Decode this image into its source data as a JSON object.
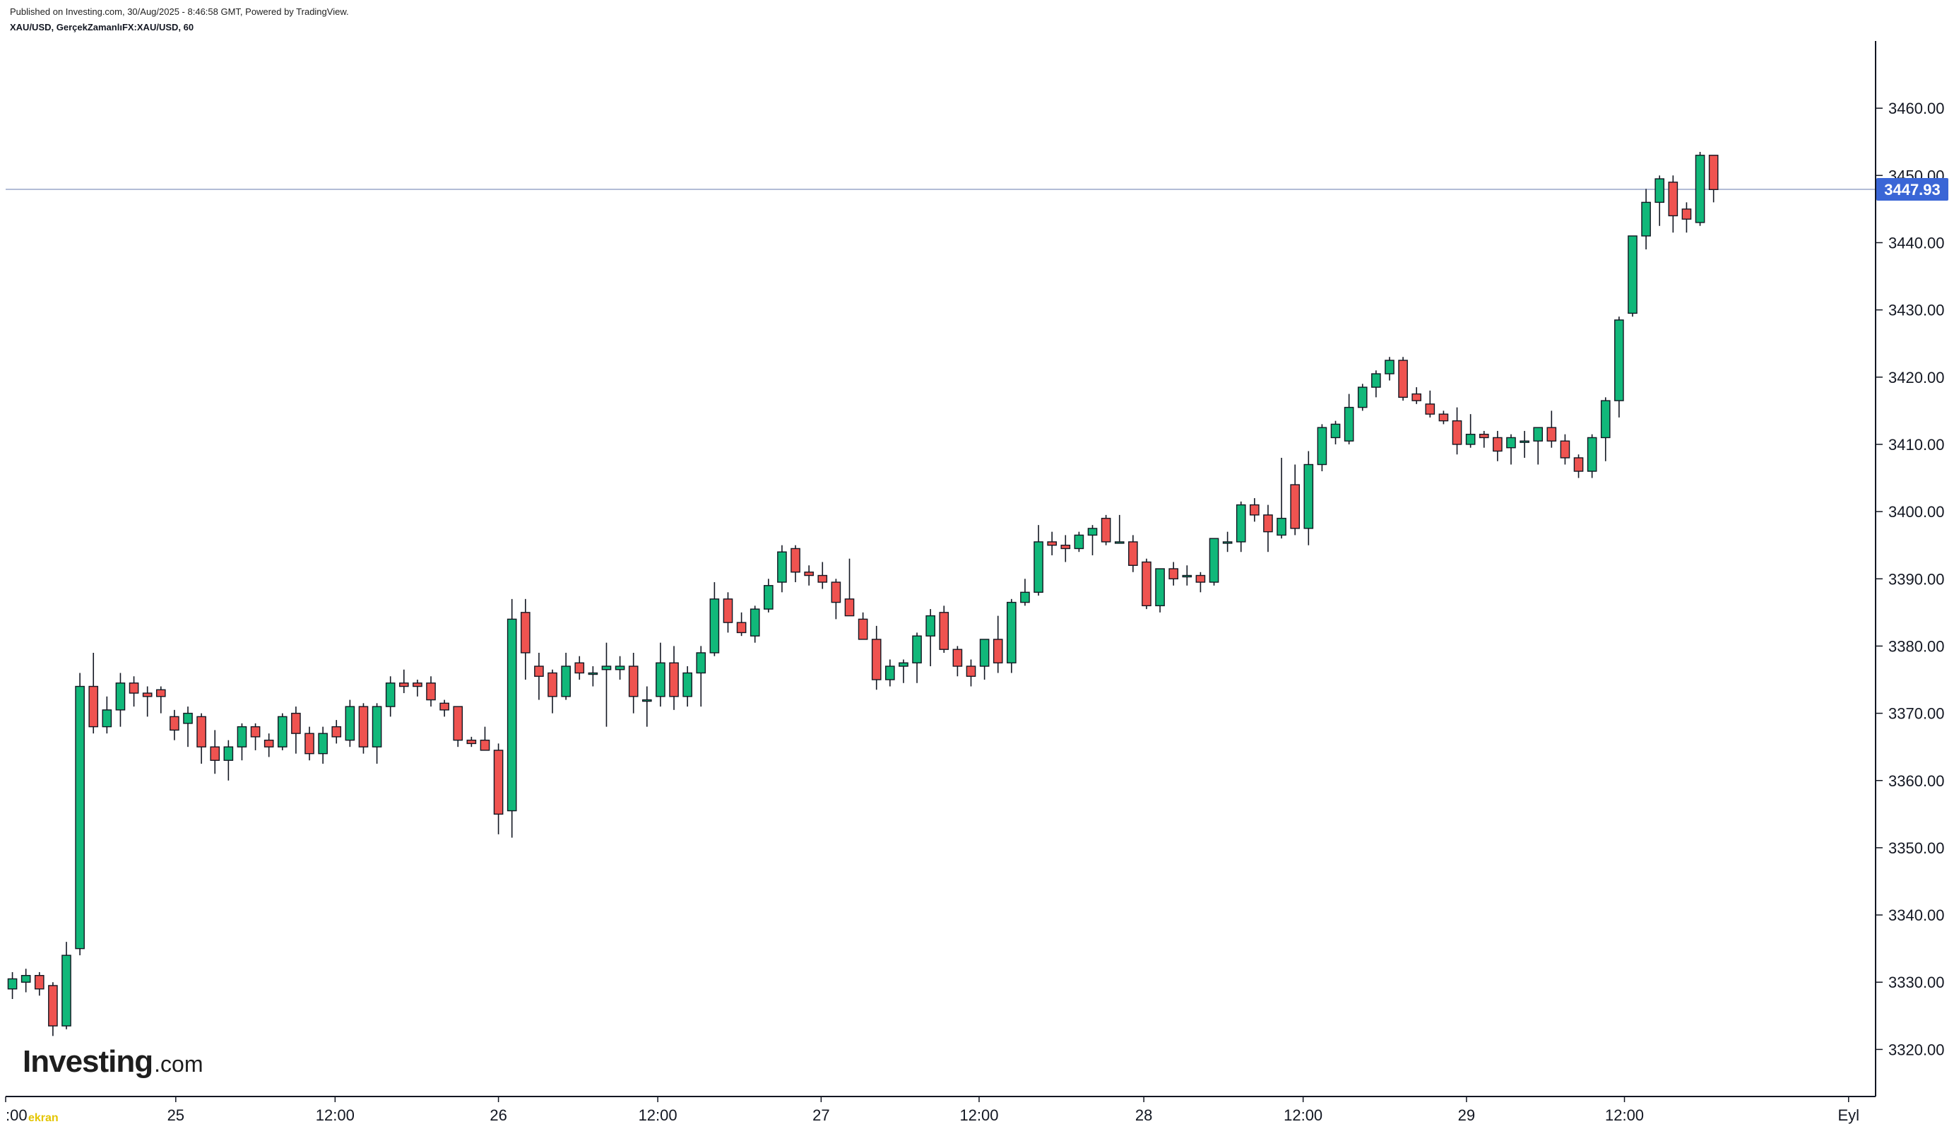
{
  "header": {
    "published": "Published on Investing.com, 30/Aug/2025 - 8:46:58 GMT, Powered by TradingView.",
    "symbol_line": "XAU/USD, GerçekZamanlıFX:XAU/USD, 60"
  },
  "logo": {
    "brand": "Investing",
    "suffix": ".com"
  },
  "watermark": "ekran",
  "colors": {
    "up": "#11b87a",
    "down": "#ef5350",
    "wick": "#131722",
    "last_price_bg": "#3a66d6",
    "last_price_line": "#9aa6c9",
    "axis": "#131722"
  },
  "chart_data": {
    "type": "candlestick",
    "title": "XAU/USD, GerçekZamanlıFX:XAU/USD, 60",
    "xlabel": "",
    "ylabel": "",
    "ylim": [
      3313,
      3470
    ],
    "x_range": [
      0,
      138.5
    ],
    "y_ticks": [
      3320,
      3330,
      3340,
      3350,
      3360,
      3370,
      3380,
      3390,
      3400,
      3410,
      3420,
      3430,
      3440,
      3450,
      3460
    ],
    "y_tick_labels": [
      "3320.00",
      "3330.00",
      "3340.00",
      "3350.00",
      "3360.00",
      "3370.00",
      "3380.00",
      "3390.00",
      "3400.00",
      "3410.00",
      "3420.00",
      "3430.00",
      "3440.00",
      "3450.00",
      "3460.00"
    ],
    "x_ticks": [
      {
        "label": ":00",
        "index": 0
      },
      {
        "label": "25",
        "index": 12.6
      },
      {
        "label": "12:00",
        "index": 24.4
      },
      {
        "label": "26",
        "index": 36.5
      },
      {
        "label": "12:00",
        "index": 48.3
      },
      {
        "label": "27",
        "index": 60.4
      },
      {
        "label": "12:00",
        "index": 72.1
      },
      {
        "label": "28",
        "index": 84.3
      },
      {
        "label": "12:00",
        "index": 96.1
      },
      {
        "label": "29",
        "index": 108.2
      },
      {
        "label": "12:00",
        "index": 119.9
      },
      {
        "label": "Eyl",
        "index": 136.5
      }
    ],
    "last_price": 3447.93,
    "last_price_label": "3447.93",
    "grid": false,
    "candles": [
      [
        3329.0,
        3331.5,
        3327.5,
        3330.5
      ],
      [
        3330.0,
        3332.0,
        3328.5,
        3331.0
      ],
      [
        3331.0,
        3331.5,
        3328.0,
        3329.0
      ],
      [
        3329.5,
        3330.0,
        3322.0,
        3323.5
      ],
      [
        3323.5,
        3336.0,
        3323.0,
        3334.0
      ],
      [
        3335.0,
        3376.0,
        3334.0,
        3374.0
      ],
      [
        3374.0,
        3379.0,
        3367.0,
        3368.0
      ],
      [
        3368.0,
        3372.5,
        3367.0,
        3370.5
      ],
      [
        3370.5,
        3376.0,
        3368.0,
        3374.5
      ],
      [
        3374.5,
        3375.5,
        3371.0,
        3373.0
      ],
      [
        3373.0,
        3374.0,
        3369.5,
        3372.5
      ],
      [
        3373.5,
        3374.0,
        3370.0,
        3372.5
      ],
      [
        3369.5,
        3370.5,
        3366.0,
        3367.5
      ],
      [
        3368.5,
        3371.0,
        3365.0,
        3370.0
      ],
      [
        3369.5,
        3370.0,
        3362.5,
        3365.0
      ],
      [
        3365.0,
        3367.5,
        3361.0,
        3363.0
      ],
      [
        3363.0,
        3366.0,
        3360.0,
        3365.0
      ],
      [
        3365.0,
        3368.5,
        3363.0,
        3368.0
      ],
      [
        3368.0,
        3368.5,
        3364.5,
        3366.5
      ],
      [
        3366.0,
        3367.0,
        3363.5,
        3365.0
      ],
      [
        3365.0,
        3370.0,
        3364.5,
        3369.5
      ],
      [
        3370.0,
        3371.0,
        3364.0,
        3367.0
      ],
      [
        3367.0,
        3368.0,
        3363.0,
        3364.0
      ],
      [
        3364.0,
        3368.0,
        3362.5,
        3367.0
      ],
      [
        3368.0,
        3369.0,
        3365.5,
        3366.5
      ],
      [
        3366.0,
        3372.0,
        3365.0,
        3371.0
      ],
      [
        3371.0,
        3371.5,
        3364.0,
        3365.0
      ],
      [
        3365.0,
        3371.5,
        3362.5,
        3371.0
      ],
      [
        3371.0,
        3375.5,
        3369.5,
        3374.5
      ],
      [
        3374.5,
        3376.5,
        3373.0,
        3374.0
      ],
      [
        3374.5,
        3375.0,
        3372.5,
        3374.0
      ],
      [
        3374.5,
        3375.5,
        3371.0,
        3372.0
      ],
      [
        3371.5,
        3372.0,
        3369.5,
        3370.5
      ],
      [
        3371.0,
        3371.0,
        3365.0,
        3366.0
      ],
      [
        3366.0,
        3366.5,
        3365.0,
        3365.5
      ],
      [
        3366.0,
        3368.0,
        3364.5,
        3364.5
      ],
      [
        3364.5,
        3365.5,
        3352.0,
        3355.0
      ],
      [
        3355.5,
        3387.0,
        3351.5,
        3384.0
      ],
      [
        3385.0,
        3387.0,
        3375.0,
        3379.0
      ],
      [
        3377.0,
        3379.0,
        3372.0,
        3375.5
      ],
      [
        3376.0,
        3376.5,
        3370.0,
        3372.5
      ],
      [
        3372.5,
        3379.0,
        3372.0,
        3377.0
      ],
      [
        3377.5,
        3378.5,
        3375.0,
        3376.0
      ],
      [
        3376.0,
        3377.0,
        3374.0,
        3376.0
      ],
      [
        3376.5,
        3380.5,
        3368.0,
        3377.0
      ],
      [
        3376.5,
        3378.5,
        3375.0,
        3377.0
      ],
      [
        3377.0,
        3379.0,
        3370.0,
        3372.5
      ],
      [
        3372.0,
        3374.0,
        3368.0,
        3372.0
      ],
      [
        3372.5,
        3380.5,
        3371.0,
        3377.5
      ],
      [
        3377.5,
        3380.0,
        3370.5,
        3372.5
      ],
      [
        3372.5,
        3377.0,
        3371.0,
        3376.0
      ],
      [
        3376.0,
        3380.0,
        3371.0,
        3379.0
      ],
      [
        3379.0,
        3389.5,
        3378.5,
        3387.0
      ],
      [
        3387.0,
        3388.0,
        3382.0,
        3383.5
      ],
      [
        3383.5,
        3385.0,
        3381.5,
        3382.0
      ],
      [
        3381.5,
        3386.0,
        3380.5,
        3385.5
      ],
      [
        3385.5,
        3390.0,
        3385.0,
        3389.0
      ],
      [
        3389.5,
        3395.0,
        3388.0,
        3394.0
      ],
      [
        3394.5,
        3395.0,
        3389.5,
        3391.0
      ],
      [
        3391.0,
        3392.0,
        3389.0,
        3390.5
      ],
      [
        3390.5,
        3392.5,
        3388.5,
        3389.5
      ],
      [
        3389.5,
        3390.0,
        3384.0,
        3386.5
      ],
      [
        3387.0,
        3393.0,
        3384.5,
        3384.5
      ],
      [
        3384.0,
        3385.0,
        3381.0,
        3381.0
      ],
      [
        3381.0,
        3383.0,
        3373.5,
        3375.0
      ],
      [
        3375.0,
        3378.0,
        3374.0,
        3377.0
      ],
      [
        3377.0,
        3378.0,
        3374.5,
        3377.5
      ],
      [
        3377.5,
        3382.0,
        3374.5,
        3381.5
      ],
      [
        3381.5,
        3385.5,
        3377.0,
        3384.5
      ],
      [
        3385.0,
        3386.0,
        3379.0,
        3379.5
      ],
      [
        3379.5,
        3380.0,
        3375.5,
        3377.0
      ],
      [
        3377.0,
        3378.0,
        3374.0,
        3375.5
      ],
      [
        3377.0,
        3380.0,
        3375.0,
        3381.0
      ],
      [
        3381.0,
        3384.5,
        3376.0,
        3377.5
      ],
      [
        3377.5,
        3387.0,
        3376.0,
        3386.5
      ],
      [
        3386.5,
        3390.0,
        3386.0,
        3388.0
      ],
      [
        3388.0,
        3398.0,
        3387.5,
        3395.5
      ],
      [
        3395.5,
        3397.0,
        3393.5,
        3395.0
      ],
      [
        3395.0,
        3396.5,
        3392.5,
        3394.5
      ],
      [
        3394.5,
        3397.0,
        3394.0,
        3396.5
      ],
      [
        3396.5,
        3398.0,
        3393.5,
        3397.5
      ],
      [
        3399.0,
        3399.5,
        3395.0,
        3395.5
      ],
      [
        3395.5,
        3399.5,
        3395.5,
        3395.5
      ],
      [
        3395.5,
        3396.5,
        3391.0,
        3392.0
      ],
      [
        3392.5,
        3393.0,
        3385.5,
        3386.0
      ],
      [
        3386.0,
        3391.5,
        3385.0,
        3391.5
      ],
      [
        3391.5,
        3392.5,
        3389.0,
        3390.0
      ],
      [
        3390.5,
        3392.0,
        3389.0,
        3390.5
      ],
      [
        3390.5,
        3391.0,
        3388.0,
        3389.5
      ],
      [
        3389.5,
        3396.0,
        3389.0,
        3396.0
      ],
      [
        3395.5,
        3397.0,
        3394.0,
        3395.5
      ],
      [
        3395.5,
        3401.5,
        3394.0,
        3401.0
      ],
      [
        3401.0,
        3402.0,
        3398.5,
        3399.5
      ],
      [
        3399.5,
        3401.0,
        3394.0,
        3397.0
      ],
      [
        3396.5,
        3408.0,
        3396.0,
        3399.0
      ],
      [
        3404.0,
        3407.0,
        3396.5,
        3397.5
      ],
      [
        3397.5,
        3409.0,
        3395.0,
        3407.0
      ],
      [
        3407.0,
        3413.0,
        3406.0,
        3412.5
      ],
      [
        3411.0,
        3413.5,
        3410.0,
        3413.0
      ],
      [
        3410.5,
        3417.5,
        3410.0,
        3415.5
      ],
      [
        3415.5,
        3419.0,
        3415.0,
        3418.5
      ],
      [
        3418.5,
        3421.0,
        3417.0,
        3420.5
      ],
      [
        3420.5,
        3423.0,
        3419.5,
        3422.5
      ],
      [
        3422.5,
        3423.0,
        3416.5,
        3417.0
      ],
      [
        3417.5,
        3418.5,
        3416.0,
        3416.5
      ],
      [
        3416.0,
        3418.0,
        3414.0,
        3414.5
      ],
      [
        3414.5,
        3415.0,
        3413.0,
        3413.5
      ],
      [
        3413.5,
        3415.5,
        3408.5,
        3410.0
      ],
      [
        3410.0,
        3414.5,
        3409.5,
        3411.5
      ],
      [
        3411.5,
        3412.0,
        3409.5,
        3411.0
      ],
      [
        3411.0,
        3412.0,
        3407.5,
        3409.0
      ],
      [
        3409.5,
        3411.5,
        3407.0,
        3411.0
      ],
      [
        3410.5,
        3412.0,
        3408.0,
        3410.5
      ],
      [
        3410.5,
        3412.5,
        3407.0,
        3412.5
      ],
      [
        3412.5,
        3415.0,
        3409.5,
        3410.5
      ],
      [
        3410.5,
        3411.5,
        3407.0,
        3408.0
      ],
      [
        3408.0,
        3408.5,
        3405.0,
        3406.0
      ],
      [
        3406.0,
        3411.5,
        3405.0,
        3411.0
      ],
      [
        3411.0,
        3417.0,
        3407.5,
        3416.5
      ],
      [
        3416.5,
        3429.0,
        3414.0,
        3428.5
      ],
      [
        3429.5,
        3441.0,
        3429.0,
        3441.0
      ],
      [
        3441.0,
        3448.0,
        3439.0,
        3446.0
      ],
      [
        3446.0,
        3450.0,
        3442.5,
        3449.5
      ],
      [
        3449.0,
        3450.0,
        3441.5,
        3444.0
      ],
      [
        3445.0,
        3446.0,
        3441.5,
        3443.5
      ],
      [
        3443.0,
        3453.5,
        3442.5,
        3453.0
      ],
      [
        3453.0,
        3453.0,
        3446.0,
        3447.9
      ]
    ]
  }
}
